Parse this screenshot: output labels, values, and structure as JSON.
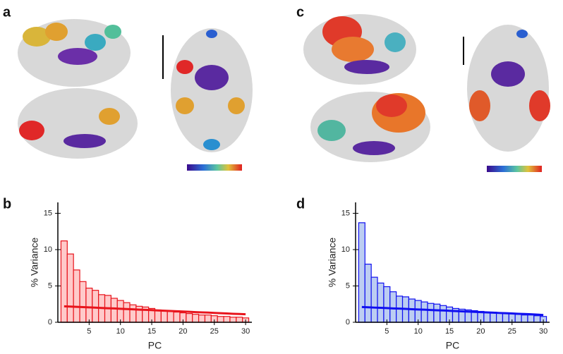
{
  "panel_labels": [
    "a",
    "b",
    "c",
    "d"
  ],
  "chart_data": [
    {
      "type": "bar",
      "xlabel": "PC",
      "ylabel": "% Variance",
      "color": "#e8141c",
      "fill": "#ffcaca",
      "x": [
        1,
        2,
        3,
        4,
        5,
        6,
        7,
        8,
        9,
        10,
        11,
        12,
        13,
        14,
        15,
        16,
        17,
        18,
        19,
        20,
        21,
        22,
        23,
        24,
        25,
        26,
        27,
        28,
        29,
        30
      ],
      "values": [
        11.2,
        9.4,
        7.2,
        5.6,
        4.7,
        4.4,
        3.8,
        3.7,
        3.3,
        3.0,
        2.7,
        2.4,
        2.2,
        2.1,
        1.9,
        1.7,
        1.6,
        1.5,
        1.4,
        1.3,
        1.2,
        1.1,
        1.0,
        1.0,
        0.9,
        0.8,
        0.8,
        0.7,
        0.7,
        0.6
      ],
      "line_values": [
        2.2,
        2.16,
        2.12,
        2.09,
        2.05,
        2.01,
        1.97,
        1.93,
        1.9,
        1.86,
        1.82,
        1.78,
        1.74,
        1.71,
        1.67,
        1.63,
        1.59,
        1.55,
        1.52,
        1.48,
        1.44,
        1.4,
        1.36,
        1.33,
        1.29,
        1.25,
        1.21,
        1.17,
        1.14,
        1.1
      ],
      "xlim": [
        0,
        31
      ],
      "ylim": [
        0,
        16.5
      ],
      "xticks": [
        5,
        10,
        15,
        20,
        25,
        30
      ],
      "yticks": [
        0,
        5,
        10,
        15
      ]
    },
    {
      "type": "bar",
      "xlabel": "PC",
      "ylabel": "% Variance",
      "color": "#1010f0",
      "fill": "#bccdf2",
      "x": [
        1,
        2,
        3,
        4,
        5,
        6,
        7,
        8,
        9,
        10,
        11,
        12,
        13,
        14,
        15,
        16,
        17,
        18,
        19,
        20,
        21,
        22,
        23,
        24,
        25,
        26,
        27,
        28,
        29,
        30
      ],
      "values": [
        13.7,
        8.0,
        6.2,
        5.4,
        4.9,
        4.2,
        3.6,
        3.5,
        3.2,
        3.0,
        2.8,
        2.6,
        2.5,
        2.3,
        2.1,
        1.9,
        1.8,
        1.7,
        1.6,
        1.5,
        1.4,
        1.4,
        1.3,
        1.2,
        1.2,
        1.1,
        1.0,
        1.0,
        0.9,
        0.8
      ],
      "line_values": [
        2.1,
        2.06,
        2.02,
        1.99,
        1.95,
        1.91,
        1.88,
        1.84,
        1.8,
        1.76,
        1.73,
        1.69,
        1.65,
        1.62,
        1.58,
        1.54,
        1.51,
        1.47,
        1.43,
        1.39,
        1.36,
        1.32,
        1.28,
        1.25,
        1.21,
        1.17,
        1.14,
        1.1,
        1.06,
        1.0
      ],
      "xlim": [
        0,
        31
      ],
      "ylim": [
        0,
        16.5
      ],
      "xticks": [
        5,
        10,
        15,
        20,
        25,
        30
      ],
      "yticks": [
        0,
        5,
        10,
        15
      ]
    }
  ]
}
